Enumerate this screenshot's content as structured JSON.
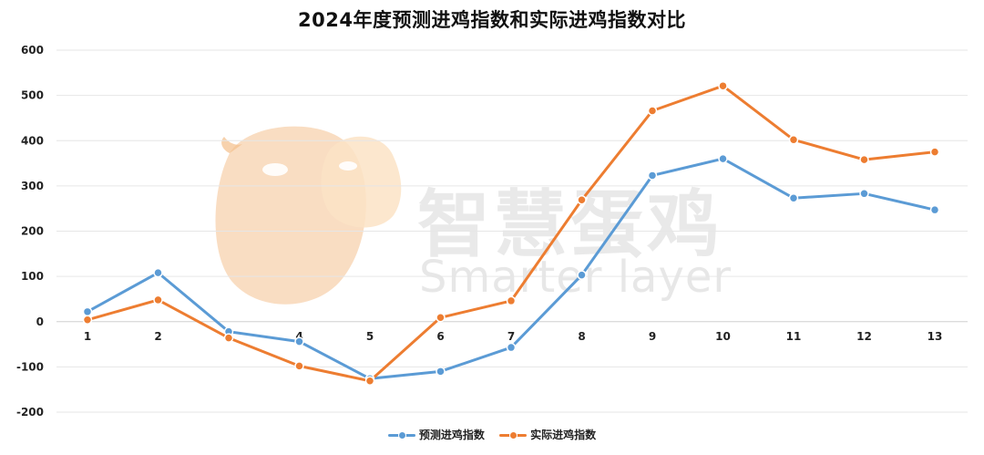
{
  "chart_data": {
    "type": "line",
    "title": "2024年度预测进鸡指数和实际进鸡指数对比",
    "categories": [
      "1",
      "2",
      "3",
      "4",
      "5",
      "6",
      "7",
      "8",
      "9",
      "10",
      "11",
      "12",
      "13"
    ],
    "series": [
      {
        "name": "预测进鸡指数",
        "color": "#5b9bd5",
        "values": [
          22,
          108,
          -22,
          -44,
          -126,
          -110,
          -57,
          103,
          323,
          360,
          273,
          283,
          247
        ]
      },
      {
        "name": "实际进鸡指数",
        "color": "#ed7d31",
        "values": [
          4,
          48,
          -36,
          -98,
          -131,
          9,
          46,
          269,
          466,
          521,
          402,
          358,
          375
        ]
      }
    ],
    "ylim": [
      -200,
      600
    ],
    "yticks": [
      "600",
      "500",
      "400",
      "300",
      "200",
      "100",
      "0",
      "-100",
      "-200"
    ],
    "grid": true,
    "legend_position": "bottom"
  },
  "watermark": {
    "name_cn": "智慧蛋鸡",
    "name_en": "Smarter layer",
    "logo_icon": "chick-logo-icon",
    "logo_color": "#f5c592"
  }
}
